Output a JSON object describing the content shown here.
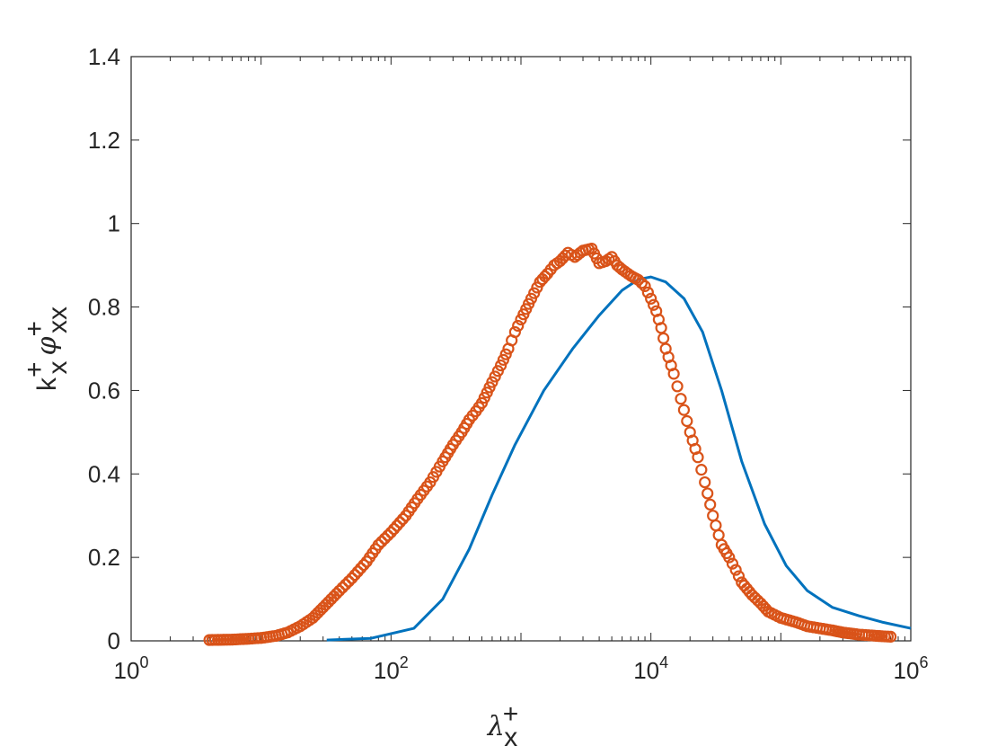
{
  "chart_data": {
    "type": "line",
    "xscale": "log",
    "xlim": [
      1,
      1000000
    ],
    "ylim": [
      0,
      1.4
    ],
    "grid": false,
    "legend": "none",
    "xlabel": {
      "base": "λ",
      "sup": "+",
      "sub": "x"
    },
    "ylabel": {
      "k_base": "k",
      "k_sup": "+",
      "k_sub": "x",
      "phi_base": "φ",
      "phi_sup": "+",
      "phi_sub": "xx"
    },
    "x_ticks": [
      {
        "value": 1,
        "base": "10",
        "exp": "0"
      },
      {
        "value": 100,
        "base": "10",
        "exp": "2"
      },
      {
        "value": 10000,
        "base": "10",
        "exp": "4"
      },
      {
        "value": 1000000,
        "base": "10",
        "exp": "6"
      }
    ],
    "y_ticks": [
      {
        "value": 0,
        "label": "0"
      },
      {
        "value": 0.2,
        "label": "0.2"
      },
      {
        "value": 0.4,
        "label": "0.4"
      },
      {
        "value": 0.6,
        "label": "0.6"
      },
      {
        "value": 0.8,
        "label": "0.8"
      },
      {
        "value": 1,
        "label": "1"
      },
      {
        "value": 1.2,
        "label": "1.2"
      },
      {
        "value": 1.4,
        "label": "1.4"
      }
    ],
    "series": [
      {
        "style": "line",
        "color": "#0072BD",
        "x": [
          32,
          70,
          150,
          250,
          400,
          600,
          900,
          1500,
          2500,
          4000,
          6000,
          8000,
          10000,
          13000,
          18000,
          25000,
          35000,
          50000,
          75000,
          110000,
          160000,
          250000,
          400000,
          600000,
          1000000
        ],
        "y": [
          0.002,
          0.006,
          0.03,
          0.1,
          0.22,
          0.35,
          0.47,
          0.6,
          0.7,
          0.78,
          0.84,
          0.866,
          0.872,
          0.86,
          0.82,
          0.74,
          0.6,
          0.43,
          0.28,
          0.18,
          0.12,
          0.08,
          0.06,
          0.045,
          0.03
        ]
      },
      {
        "style": "markers",
        "marker": "circle",
        "color": "#D95319",
        "x": [
          4,
          6,
          8,
          10,
          13,
          16,
          20,
          25,
          30,
          40,
          50,
          65,
          80,
          100,
          130,
          160,
          200,
          250,
          300,
          350,
          400,
          450,
          500,
          600,
          700,
          800,
          900,
          1000,
          1200,
          1400,
          1600,
          1800,
          2000,
          2300,
          2600,
          3000,
          3500,
          4000,
          4500,
          5000,
          5500,
          6000,
          7000,
          8000,
          9000,
          10000,
          11000,
          12000,
          13000,
          15000,
          17000,
          20000,
          23000,
          26000,
          30000,
          35000,
          40000,
          45000,
          50000,
          60000,
          70000,
          80000,
          100000,
          130000,
          160000,
          200000,
          250000,
          300000,
          400000,
          500000,
          600000,
          700000
        ],
        "y": [
          0.002,
          0.003,
          0.005,
          0.007,
          0.012,
          0.02,
          0.035,
          0.055,
          0.08,
          0.12,
          0.15,
          0.19,
          0.23,
          0.26,
          0.3,
          0.34,
          0.38,
          0.43,
          0.47,
          0.5,
          0.53,
          0.55,
          0.57,
          0.62,
          0.66,
          0.7,
          0.74,
          0.77,
          0.82,
          0.86,
          0.88,
          0.9,
          0.91,
          0.93,
          0.92,
          0.935,
          0.94,
          0.905,
          0.91,
          0.92,
          0.9,
          0.89,
          0.875,
          0.865,
          0.85,
          0.82,
          0.79,
          0.75,
          0.7,
          0.64,
          0.58,
          0.5,
          0.44,
          0.38,
          0.3,
          0.23,
          0.2,
          0.17,
          0.14,
          0.11,
          0.09,
          0.07,
          0.055,
          0.045,
          0.035,
          0.03,
          0.025,
          0.02,
          0.015,
          0.013,
          0.011,
          0.01
        ]
      }
    ]
  }
}
